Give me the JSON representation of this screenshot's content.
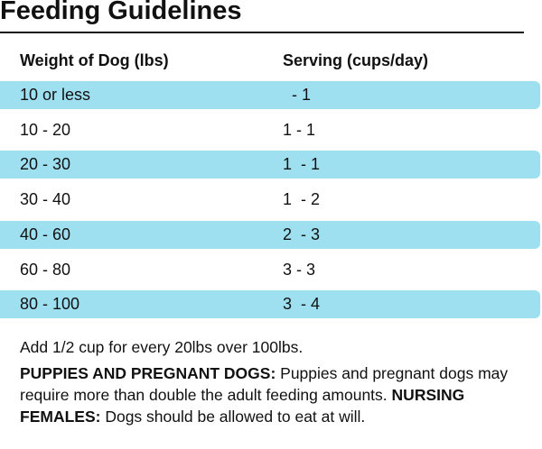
{
  "header": {
    "title": "Feeding Guidelines"
  },
  "table": {
    "columns": [
      "Weight of Dog (lbs)",
      "Serving (cups/day)"
    ],
    "rows": [
      [
        "10 or less",
        "  - 1"
      ],
      [
        "10 - 20",
        "1 - 1"
      ],
      [
        "20 - 30",
        "1  - 1"
      ],
      [
        "30 - 40",
        "1  - 2"
      ],
      [
        "40 - 60",
        "2  - 3"
      ],
      [
        "60 - 80",
        "3 - 3"
      ],
      [
        "80 - 100",
        "3  - 4"
      ]
    ]
  },
  "notes": {
    "add": "Add 1/2 cup for every 20lbs over 100lbs.",
    "paragraph": [
      "PUPPIES AND PREGNANT DOGS:",
      "Puppies and pregnant dogs may require more than double the adult feeding amounts.",
      "NURSING FEMALES:",
      "Dogs should be allowed to eat at will."
    ]
  }
}
